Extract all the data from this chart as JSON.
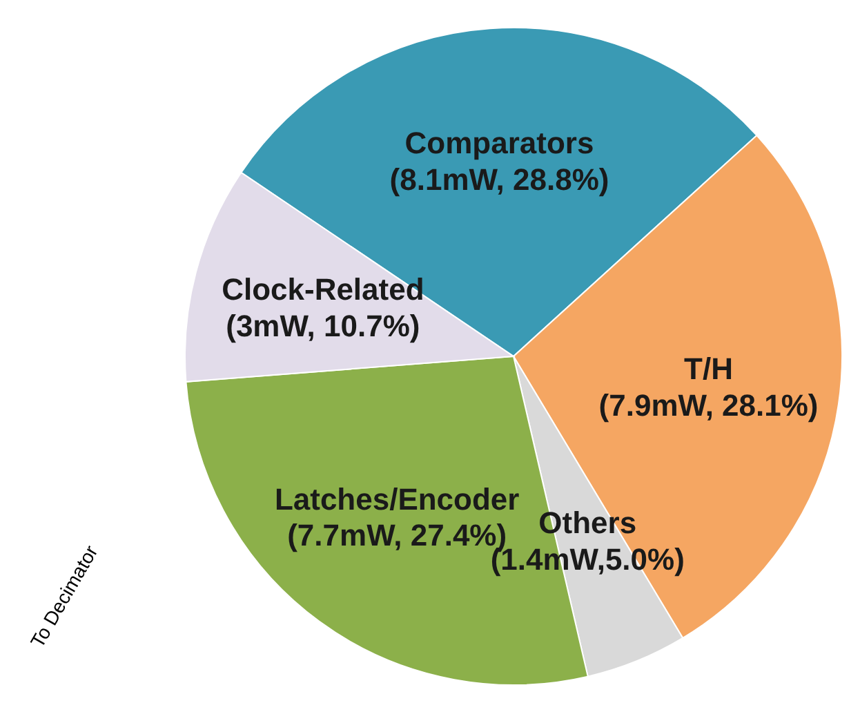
{
  "chart_data": {
    "type": "pie",
    "categories": [
      "Comparators",
      "T/H",
      "Others",
      "Latches/Encoder",
      "Clock-Related"
    ],
    "values": [
      8.1,
      7.9,
      1.4,
      7.7,
      3
    ],
    "value_labels": [
      "(8.1mW, 28.8%)",
      "(7.9mW, 28.1%)",
      "(1.4mW,5.0%)",
      "(7.7mW, 27.4%)",
      "(3mW, 10.7%)"
    ],
    "colors": [
      "#3a9ab4",
      "#f5a662",
      "#d9d9d9",
      "#8cb04a",
      "#e2dcea"
    ],
    "annotations": [
      "To Decimator"
    ]
  }
}
